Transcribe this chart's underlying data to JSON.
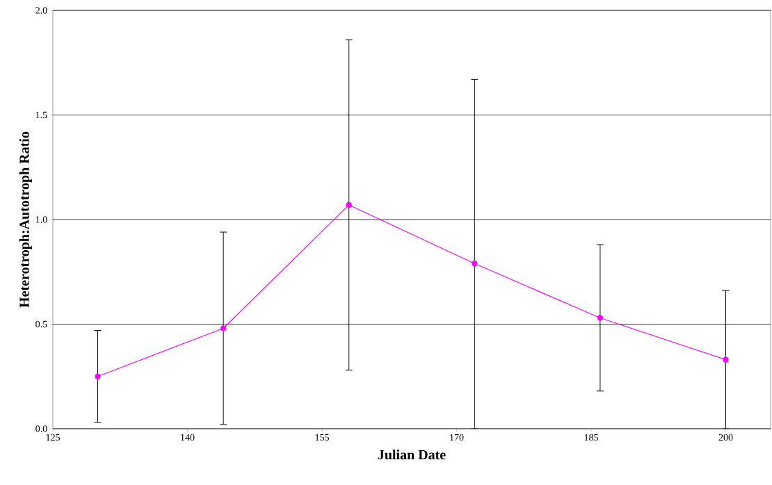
{
  "chart_data": {
    "type": "line",
    "xlabel": "Julian Date",
    "ylabel": "Heterotroph:Autotroph Ratio",
    "x": [
      130,
      144,
      158,
      172,
      186,
      200
    ],
    "series": [
      {
        "color": "#ff00ff",
        "values": [
          0.25,
          0.48,
          1.07,
          0.79,
          0.53,
          0.33
        ],
        "errors": [
          0.22,
          0.46,
          0.79,
          [
            0,
            1.67
          ],
          0.35,
          0.33
        ]
      }
    ],
    "xlim": [
      125,
      205
    ],
    "xticks": [
      125,
      140,
      155,
      170,
      185,
      200
    ],
    "ylim": [
      0,
      2
    ],
    "yticks": [
      {
        "value": 0,
        "label": "0.0"
      },
      {
        "value": 0.5,
        "label": "0.5"
      },
      {
        "value": 1,
        "label": "1.0"
      },
      {
        "value": 1.5,
        "label": "1.5"
      },
      {
        "value": 2,
        "label": "2.0"
      }
    ],
    "grid": "y",
    "marker": "circle",
    "line_style": "solid"
  }
}
